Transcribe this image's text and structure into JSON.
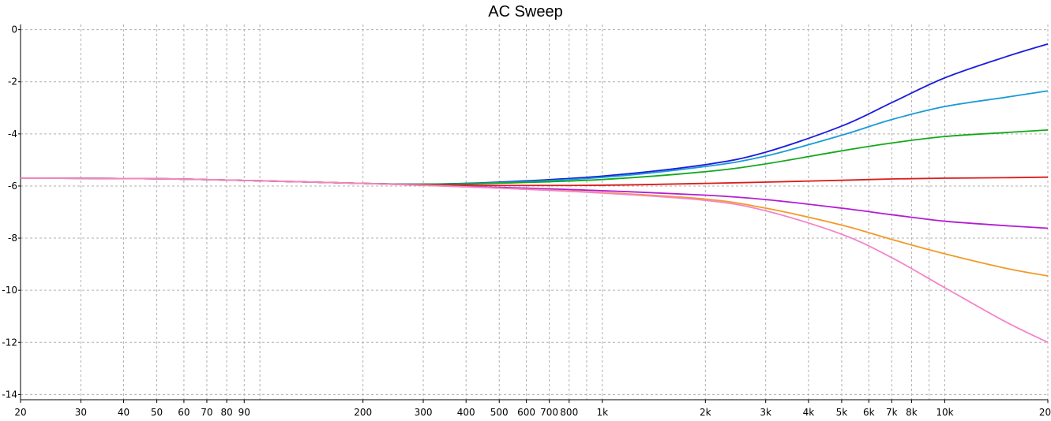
{
  "chart_data": {
    "type": "line",
    "title": "AC Sweep",
    "xlabel": "",
    "ylabel": "",
    "xscale": "log",
    "xlim": [
      20,
      20000
    ],
    "ylim": [
      -14.2,
      0.2
    ],
    "grid": true,
    "grid_style": "dashed",
    "legend": "none",
    "x_ticks": [
      {
        "value": 20,
        "label": "20"
      },
      {
        "value": 30,
        "label": "30"
      },
      {
        "value": 40,
        "label": "40"
      },
      {
        "value": 50,
        "label": "50"
      },
      {
        "value": 60,
        "label": "60"
      },
      {
        "value": 70,
        "label": "70"
      },
      {
        "value": 80,
        "label": "80"
      },
      {
        "value": 90,
        "label": "90"
      },
      {
        "value": 200,
        "label": "200"
      },
      {
        "value": 300,
        "label": "300"
      },
      {
        "value": 400,
        "label": "400"
      },
      {
        "value": 500,
        "label": "500"
      },
      {
        "value": 600,
        "label": "600"
      },
      {
        "value": 700,
        "label": "700"
      },
      {
        "value": 800,
        "label": "800"
      },
      {
        "value": 1000,
        "label": "1k"
      },
      {
        "value": 2000,
        "label": "2k"
      },
      {
        "value": 3000,
        "label": "3k"
      },
      {
        "value": 4000,
        "label": "4k"
      },
      {
        "value": 5000,
        "label": "5k"
      },
      {
        "value": 6000,
        "label": "6k"
      },
      {
        "value": 7000,
        "label": "7k"
      },
      {
        "value": 8000,
        "label": "8k"
      },
      {
        "value": 10000,
        "label": "10k"
      },
      {
        "value": 20000,
        "label": "20k"
      }
    ],
    "x_grid_unlabeled": [
      100,
      900,
      9000
    ],
    "y_ticks": [
      {
        "value": 0,
        "label": "0"
      },
      {
        "value": -2,
        "label": "-2"
      },
      {
        "value": -4,
        "label": "-4"
      },
      {
        "value": -6,
        "label": "-6"
      },
      {
        "value": -8,
        "label": "-8"
      },
      {
        "value": -10,
        "label": "-10"
      },
      {
        "value": -12,
        "label": "-12"
      },
      {
        "value": -14,
        "label": "-14"
      }
    ],
    "x": [
      20,
      50,
      100,
      200,
      300,
      500,
      1000,
      2000,
      3000,
      5000,
      7000,
      10000,
      15000,
      20000
    ],
    "series": [
      {
        "color": "#1c1cdc",
        "values": [
          -5.7,
          -5.72,
          -5.8,
          -5.9,
          -5.93,
          -5.85,
          -5.62,
          -5.18,
          -4.7,
          -3.7,
          -2.8,
          -1.85,
          -1.05,
          -0.55
        ]
      },
      {
        "color": "#1a9ad8",
        "values": [
          -5.7,
          -5.72,
          -5.8,
          -5.9,
          -5.93,
          -5.87,
          -5.67,
          -5.25,
          -4.85,
          -4.05,
          -3.45,
          -2.95,
          -2.6,
          -2.35
        ]
      },
      {
        "color": "#14a81c",
        "values": [
          -5.7,
          -5.72,
          -5.8,
          -5.9,
          -5.93,
          -5.89,
          -5.75,
          -5.45,
          -5.15,
          -4.65,
          -4.35,
          -4.1,
          -3.95,
          -3.85
        ]
      },
      {
        "color": "#dc1c1c",
        "values": [
          -5.7,
          -5.72,
          -5.8,
          -5.9,
          -5.95,
          -5.98,
          -5.97,
          -5.9,
          -5.85,
          -5.78,
          -5.73,
          -5.7,
          -5.68,
          -5.66
        ]
      },
      {
        "color": "#b41cd4",
        "values": [
          -5.7,
          -5.72,
          -5.8,
          -5.9,
          -5.97,
          -6.05,
          -6.18,
          -6.35,
          -6.52,
          -6.85,
          -7.1,
          -7.35,
          -7.52,
          -7.62
        ]
      },
      {
        "color": "#f09b28",
        "values": [
          -5.7,
          -5.72,
          -5.8,
          -5.9,
          -5.97,
          -6.08,
          -6.25,
          -6.5,
          -6.85,
          -7.5,
          -8.05,
          -8.6,
          -9.15,
          -9.45
        ]
      },
      {
        "color": "#f484c8",
        "values": [
          -5.7,
          -5.72,
          -5.8,
          -5.9,
          -5.97,
          -6.08,
          -6.27,
          -6.55,
          -6.95,
          -7.85,
          -8.75,
          -9.9,
          -11.2,
          -12.0
        ]
      }
    ]
  }
}
